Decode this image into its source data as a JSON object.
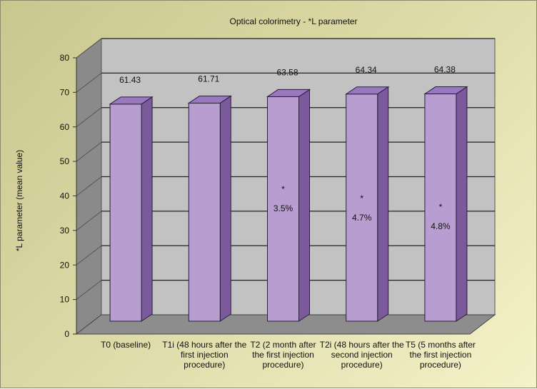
{
  "chart_data": {
    "type": "bar",
    "title": "Optical colorimetry - *L parameter",
    "xlabel": "",
    "ylabel": "*L parameter (mean value)",
    "ylim": [
      0,
      80
    ],
    "yticks": [
      0,
      10,
      20,
      30,
      40,
      50,
      60,
      70,
      80
    ],
    "grid": true,
    "legend": "none",
    "categories": [
      [
        "T0 (baseline)"
      ],
      [
        "T1i (48 hours after the",
        "first injection",
        "procedure)"
      ],
      [
        "T2 (2 month after",
        "the first injection",
        "procedure)"
      ],
      [
        "T2i (48 hours after the",
        "second injection",
        "procedure)"
      ],
      [
        "T5 (5 months after",
        "the first injection",
        "procedure)"
      ]
    ],
    "values": [
      61.43,
      61.71,
      63.58,
      64.34,
      64.38
    ],
    "value_labels": [
      "61.43",
      "61.71",
      "63.58",
      "64.34",
      "64.38"
    ],
    "annotations": [
      {
        "category_index": 2,
        "marker": "*",
        "text": "3.5%"
      },
      {
        "category_index": 3,
        "marker": "*",
        "text": "4.7%"
      },
      {
        "category_index": 4,
        "marker": "*",
        "text": "4.8%"
      }
    ],
    "colors": {
      "bar_front": "#b89dd0",
      "bar_side": "#7b5a9c",
      "bar_top": "#9a78bf",
      "bar_edge": "#2a1f3a",
      "plot_wall": "#c2c2c2",
      "plot_floor": "#8d8d8d",
      "plot_side_wall": "#8a8a8a"
    }
  }
}
